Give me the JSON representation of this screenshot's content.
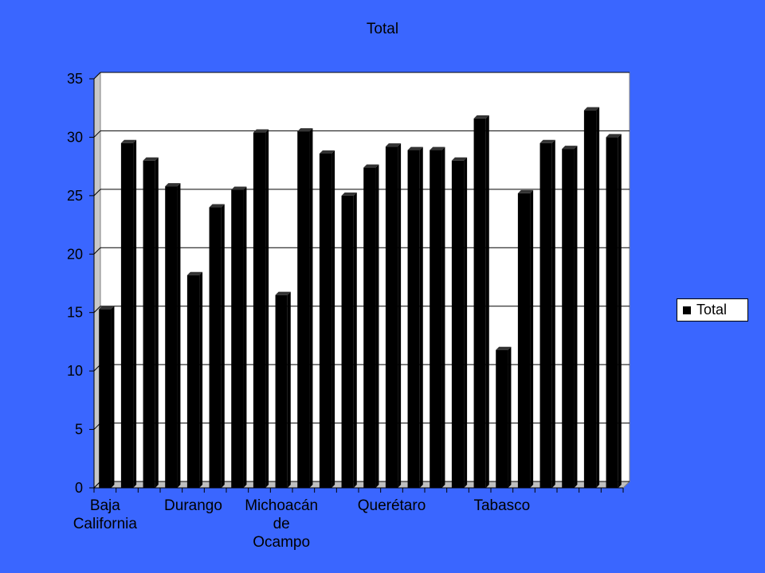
{
  "chart_data": {
    "type": "bar",
    "title": "Total",
    "categories": [
      "Baja California",
      "",
      "",
      "",
      "Durango",
      "",
      "",
      "",
      "Michoacán de Ocampo",
      "",
      "",
      "",
      "",
      "Querétaro",
      "",
      "",
      "",
      "",
      "Tabasco",
      "",
      "",
      "",
      "",
      ""
    ],
    "category_label_lines": [
      [
        "Baja",
        "California"
      ],
      [
        "Durango"
      ],
      [
        "Michoacán",
        "de",
        "Ocampo"
      ],
      [
        "Querétaro"
      ],
      [
        "Tabasco"
      ]
    ],
    "series": [
      {
        "name": "Total",
        "color": "#000000",
        "values": [
          15.3,
          29.5,
          28.0,
          25.8,
          18.2,
          24.0,
          25.5,
          30.4,
          16.5,
          30.5,
          28.6,
          25.0,
          27.4,
          29.2,
          28.9,
          28.9,
          28.0,
          31.6,
          11.8,
          25.2,
          29.5,
          29.0,
          32.3,
          30.0
        ]
      }
    ],
    "ylim": [
      0,
      35
    ],
    "yticks": [
      0,
      5,
      10,
      15,
      20,
      25,
      30,
      35
    ],
    "grid": true,
    "legend_position": "right",
    "colors": {
      "background": "#3a66ff",
      "plot_area": "#ffffff",
      "bar": "#000000"
    }
  }
}
